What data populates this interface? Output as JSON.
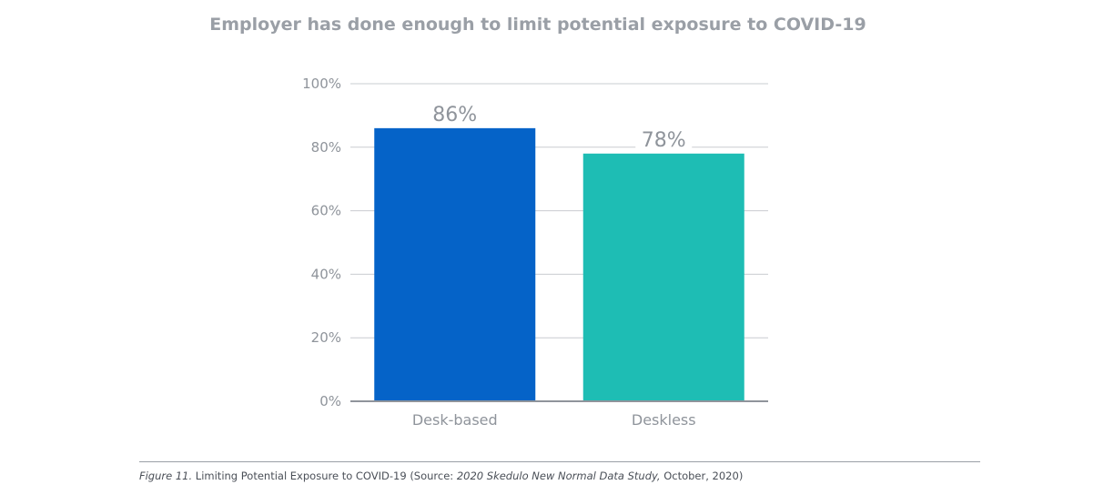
{
  "chart_data": {
    "type": "bar",
    "title": "Employer has done enough to limit potential exposure to COVID-19",
    "categories": [
      "Desk-based",
      "Deskless"
    ],
    "values": [
      86,
      78
    ],
    "data_labels": [
      "86%",
      "78%"
    ],
    "colors": [
      "#0563c8",
      "#1ebdb4"
    ],
    "ylim": [
      0,
      100
    ],
    "yticks": [
      0,
      20,
      40,
      60,
      80,
      100
    ],
    "ytick_labels": [
      "0%",
      "20%",
      "40%",
      "60%",
      "80%",
      "100%"
    ],
    "xlabel": "",
    "ylabel": "",
    "grid": true,
    "legend": "none"
  },
  "caption": {
    "figure": "Figure 11.",
    "text_before": " Limiting Potential Exposure to COVID-19 (Source: ",
    "source": "2020 Skedulo New Normal Data Study,",
    "text_after": " October, 2020)"
  }
}
